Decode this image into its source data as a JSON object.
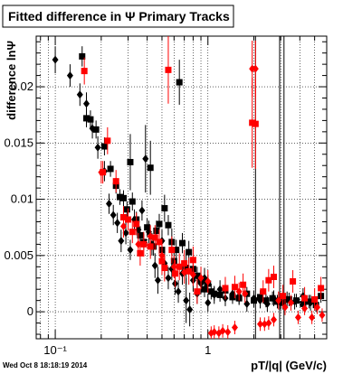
{
  "chart_data": {
    "type": "scatter",
    "title": "Fitted difference in  Ψ   Primary Tracks",
    "xlabel": "pT/|q| (GeV/c)",
    "ylabel": "difference lnΨ",
    "timestamp": "Wed Oct  8 18:18:19 2014",
    "x_scale": "log",
    "xlim": [
      0.075,
      6.0
    ],
    "ylim": [
      -0.0024,
      0.0245
    ],
    "x_major_ticks": [
      {
        "v": 0.1,
        "label": "10⁻¹"
      },
      {
        "v": 1,
        "label": "1"
      }
    ],
    "y_ticks": [
      {
        "v": 0,
        "label": "0"
      },
      {
        "v": 0.005,
        "label": "0.005"
      },
      {
        "v": 0.01,
        "label": "0.01"
      },
      {
        "v": 0.015,
        "label": "0.015"
      },
      {
        "v": 0.02,
        "label": "0.02"
      }
    ],
    "grid": true,
    "vertical_lines_x": [
      2.05,
      2.95,
      3.15
    ],
    "colors": {
      "series_black": "#000000",
      "series_red": "#ff0000",
      "grid": "#000000"
    },
    "series": [
      {
        "color": "#000000",
        "marker": "square",
        "points": [
          [
            0.15,
            0.0227,
            0.0009
          ],
          [
            0.16,
            0.0172,
            0.0008
          ],
          [
            0.17,
            0.0171,
            0.0008
          ],
          [
            0.185,
            0.0162,
            0.0008
          ],
          [
            0.21,
            0.0147,
            0.0008
          ],
          [
            0.23,
            0.0127,
            0.0007
          ],
          [
            0.25,
            0.0112,
            0.0007
          ],
          [
            0.265,
            0.0102,
            0.0007
          ],
          [
            0.28,
            0.0101,
            0.0007
          ],
          [
            0.295,
            0.0091,
            0.0007
          ],
          [
            0.31,
            0.0133,
            0.0025
          ],
          [
            0.32,
            0.0098,
            0.0008
          ],
          [
            0.34,
            0.0082,
            0.0007
          ],
          [
            0.36,
            0.0068,
            0.0008
          ],
          [
            0.38,
            0.0062,
            0.0007
          ],
          [
            0.4,
            0.0075,
            0.0008
          ],
          [
            0.42,
            0.0128,
            0.0024
          ],
          [
            0.44,
            0.0058,
            0.0008
          ],
          [
            0.46,
            0.0072,
            0.0009
          ],
          [
            0.48,
            0.0078,
            0.0009
          ],
          [
            0.5,
            0.0055,
            0.0008
          ],
          [
            0.52,
            0.0092,
            0.0012
          ],
          [
            0.55,
            0.0077,
            0.0009
          ],
          [
            0.58,
            0.0062,
            0.0012
          ],
          [
            0.6,
            0.0045,
            0.0009
          ],
          [
            0.62,
            0.0055,
            0.0009
          ],
          [
            0.65,
            0.0204,
            0.002
          ],
          [
            0.68,
            0.0061,
            0.0009
          ],
          [
            0.72,
            0.0039,
            0.0015
          ],
          [
            0.75,
            0.0053,
            0.001
          ],
          [
            0.8,
            0.0038,
            0.001
          ],
          [
            0.85,
            0.0032,
            0.0008
          ],
          [
            0.9,
            0.0028,
            0.0008
          ],
          [
            0.95,
            0.002,
            0.0007
          ],
          [
            1.0,
            0.0025,
            0.0008
          ],
          [
            1.05,
            0.0018,
            0.0007
          ],
          [
            1.1,
            0.0016,
            0.0006
          ],
          [
            1.2,
            0.0015,
            0.0006
          ],
          [
            1.3,
            0.0019,
            0.0006
          ],
          [
            1.45,
            0.0013,
            0.0006
          ],
          [
            1.6,
            0.0012,
            0.0006
          ],
          [
            1.8,
            0.0016,
            0.0006
          ],
          [
            2.0,
            0.001,
            0.0006
          ],
          [
            2.2,
            0.0013,
            0.0006
          ],
          [
            2.4,
            0.001,
            0.0006
          ],
          [
            2.65,
            0.0012,
            0.0006
          ],
          [
            2.85,
            0.0009,
            0.0006
          ],
          [
            3.1,
            0.0008,
            0.0006
          ],
          [
            3.4,
            0.0011,
            0.0006
          ],
          [
            3.8,
            0.001,
            0.0006
          ],
          [
            4.2,
            0.0007,
            0.0006
          ],
          [
            4.6,
            0.0009,
            0.0006
          ],
          [
            5.1,
            0.0006,
            0.0006
          ],
          [
            5.5,
            0.0014,
            0.0006
          ]
        ]
      },
      {
        "color": "#000000",
        "marker": "diamond",
        "points": [
          [
            0.1,
            0.0224,
            0.0012
          ],
          [
            0.125,
            0.021,
            0.001
          ],
          [
            0.145,
            0.0193,
            0.001
          ],
          [
            0.16,
            0.0185,
            0.001
          ],
          [
            0.175,
            0.0163,
            0.0009
          ],
          [
            0.19,
            0.0146,
            0.001
          ],
          [
            0.21,
            0.0125,
            0.0009
          ],
          [
            0.225,
            0.0096,
            0.0009
          ],
          [
            0.24,
            0.0086,
            0.0009
          ],
          [
            0.255,
            0.0079,
            0.0009
          ],
          [
            0.27,
            0.0063,
            0.001
          ],
          [
            0.29,
            0.007,
            0.001
          ],
          [
            0.31,
            0.0055,
            0.0009
          ],
          [
            0.33,
            0.0082,
            0.0009
          ],
          [
            0.35,
            0.0073,
            0.0009
          ],
          [
            0.37,
            0.009,
            0.0009
          ],
          [
            0.39,
            0.0136,
            0.003
          ],
          [
            0.41,
            0.0071,
            0.001
          ],
          [
            0.43,
            0.006,
            0.001
          ],
          [
            0.45,
            0.0041,
            0.0011
          ],
          [
            0.47,
            0.0028,
            0.0012
          ],
          [
            0.5,
            0.0063,
            0.001
          ],
          [
            0.52,
            0.0043,
            0.0011
          ],
          [
            0.55,
            0.003,
            0.001
          ],
          [
            0.58,
            0.0038,
            0.001
          ],
          [
            0.61,
            0.0025,
            0.001
          ],
          [
            0.64,
            0.0018,
            0.001
          ],
          [
            0.68,
            0.0034,
            0.001
          ],
          [
            0.72,
            0.001,
            0.002
          ],
          [
            0.76,
            0.0002,
            0.0015
          ],
          [
            0.8,
            0.0028,
            0.001
          ],
          [
            0.85,
            0.0016,
            0.0009
          ],
          [
            0.9,
            0.0025,
            0.0009
          ],
          [
            0.95,
            0.003,
            0.0009
          ],
          [
            1.0,
            0.0008,
            0.0008
          ],
          [
            1.1,
            0.0015,
            0.0008
          ],
          [
            1.2,
            0.002,
            0.0008
          ],
          [
            1.3,
            0.0012,
            0.0007
          ],
          [
            1.45,
            0.0016,
            0.0007
          ],
          [
            1.6,
            0.0014,
            0.0007
          ],
          [
            1.8,
            0.0007,
            0.0007
          ],
          [
            2.0,
            0.0012,
            0.0007
          ],
          [
            2.2,
            0.001,
            0.0007
          ],
          [
            2.45,
            0.0007,
            0.0007
          ],
          [
            2.7,
            0.0012,
            0.0007
          ],
          [
            3.0,
            0.0009,
            0.0007
          ],
          [
            3.3,
            0.0011,
            0.0007
          ],
          [
            3.7,
            0.0009,
            0.0007
          ],
          [
            4.2,
            0.0014,
            0.0007
          ],
          [
            4.7,
            0.0008,
            0.0007
          ]
        ]
      },
      {
        "color": "#ff0000",
        "marker": "square",
        "points": [
          [
            0.155,
            0.0214,
            0.0012
          ],
          [
            0.205,
            0.0124,
            0.001
          ],
          [
            0.22,
            0.0152,
            0.0012
          ],
          [
            0.25,
            0.0116,
            0.001
          ],
          [
            0.28,
            0.0084,
            0.001
          ],
          [
            0.3,
            0.0082,
            0.001
          ],
          [
            0.32,
            0.0071,
            0.001
          ],
          [
            0.34,
            0.0078,
            0.001
          ],
          [
            0.36,
            0.0052,
            0.0011
          ],
          [
            0.38,
            0.006,
            0.0011
          ],
          [
            0.42,
            0.0058,
            0.0011
          ],
          [
            0.45,
            0.0066,
            0.0011
          ],
          [
            0.48,
            0.0062,
            0.0011
          ],
          [
            0.5,
            0.0045,
            0.0012
          ],
          [
            0.52,
            0.0039,
            0.0012
          ],
          [
            0.55,
            0.0215,
            0.003
          ],
          [
            0.58,
            0.0055,
            0.0012
          ],
          [
            0.61,
            0.0034,
            0.0012
          ],
          [
            0.65,
            0.004,
            0.0012
          ],
          [
            0.7,
            0.0043,
            0.0012
          ],
          [
            0.75,
            0.0036,
            0.0012
          ],
          [
            0.8,
            0.0046,
            0.0012
          ],
          [
            0.85,
            0.0018,
            0.0011
          ],
          [
            1.3,
            0.0021,
            0.001
          ],
          [
            1.5,
            0.0022,
            0.001
          ],
          [
            1.7,
            0.0024,
            0.001
          ],
          [
            1.95,
            0.0168,
            0.004
          ],
          [
            2.05,
            0.0167,
            0.004
          ],
          [
            2.3,
            0.0018,
            0.001
          ],
          [
            2.5,
            0.0028,
            0.001
          ],
          [
            2.7,
            0.0031,
            0.001
          ],
          [
            3.1,
            0.0014,
            0.001
          ],
          [
            3.6,
            0.0027,
            0.001
          ],
          [
            4.3,
            0.0012,
            0.001
          ],
          [
            5.0,
            0.0011,
            0.001
          ],
          [
            5.5,
            0.0021,
            0.001
          ]
        ]
      },
      {
        "color": "#ff0000",
        "marker": "diamond",
        "points": [
          [
            0.2,
            0.0124,
            0.001
          ],
          [
            0.28,
            0.0076,
            0.001
          ],
          [
            0.35,
            0.006,
            0.001
          ],
          [
            0.42,
            0.0067,
            0.001
          ],
          [
            0.5,
            0.005,
            0.001
          ],
          [
            0.6,
            0.004,
            0.001
          ],
          [
            0.7,
            0.0035,
            0.001
          ],
          [
            0.8,
            0.0033,
            0.001
          ],
          [
            0.9,
            0.003,
            0.001
          ],
          [
            1.0,
            0.0027,
            0.001
          ],
          [
            1.05,
            -0.0019,
            0.0006
          ],
          [
            1.1,
            -0.0018,
            0.0006
          ],
          [
            1.18,
            -0.0019,
            0.0006
          ],
          [
            1.25,
            -0.0017,
            0.0006
          ],
          [
            1.35,
            -0.0018,
            0.0006
          ],
          [
            1.5,
            -0.0014,
            0.0006
          ],
          [
            1.6,
            0.0018,
            0.0008
          ],
          [
            1.75,
            0.0016,
            0.0008
          ],
          [
            1.95,
            0.0216,
            0.0025
          ],
          [
            2.05,
            0.0216,
            0.0025
          ],
          [
            2.2,
            -0.0011,
            0.0006
          ],
          [
            2.35,
            -0.0011,
            0.0006
          ],
          [
            2.5,
            -0.001,
            0.0006
          ],
          [
            2.7,
            -0.0007,
            0.0006
          ],
          [
            2.9,
            0.001,
            0.0008
          ],
          [
            3.2,
            0.0004,
            0.0007
          ],
          [
            3.5,
            0.0008,
            0.0007
          ],
          [
            3.9,
            -0.0005,
            0.0006
          ],
          [
            4.3,
            0.0003,
            0.0006
          ],
          [
            4.8,
            -0.0005,
            0.0006
          ],
          [
            5.2,
            0.0004,
            0.0006
          ],
          [
            5.6,
            -0.0003,
            0.0006
          ]
        ]
      }
    ]
  }
}
